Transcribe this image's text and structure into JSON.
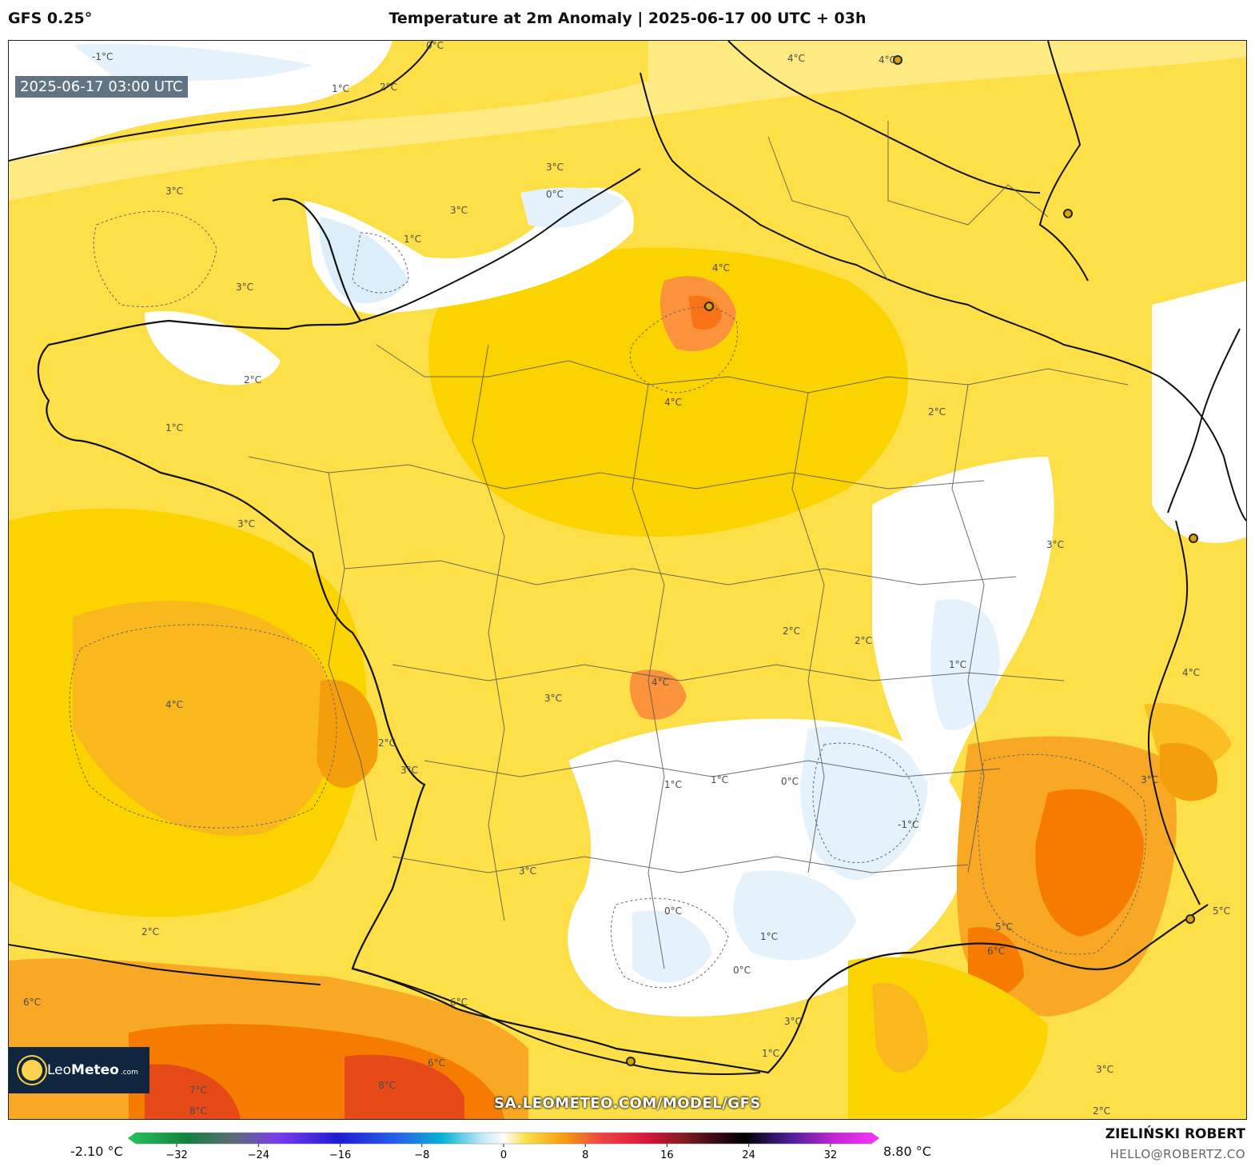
{
  "header": {
    "model": "GFS 0.25°",
    "title": "Temperature at 2m Anomaly | 2025-06-17 00 UTC + 03h"
  },
  "map": {
    "valid_time": "2025-06-17 03:00 UTC",
    "watermark": "SA.LEOMETEO.COM/MODEL/GFS",
    "logo": {
      "brand_light": "Leo",
      "brand_bold": "Meteo",
      "domain": ".com"
    },
    "contour_labels": [
      "-1°C",
      "0°C",
      "1°C",
      "2°C",
      "3°C",
      "4°C",
      "5°C",
      "6°C",
      "7°C",
      "8°C"
    ],
    "colors": {
      "cold": "#e6f2fb",
      "neutral": "#ffffff",
      "warm1": "#fff3b0",
      "warm2": "#fde047",
      "warm3": "#fbd400",
      "warm4": "#f9a825",
      "warm5": "#f57c00",
      "warm6": "#e64a19"
    }
  },
  "colorbar": {
    "min_label": "-2.10 °C",
    "max_label": "8.80 °C",
    "ticks": [
      "−32",
      "−24",
      "−16",
      "−8",
      "0",
      "8",
      "16",
      "24",
      "32"
    ],
    "tick_values": [
      -32,
      -24,
      -16,
      -8,
      0,
      8,
      16,
      24,
      32
    ],
    "range": [
      -36,
      36
    ]
  },
  "author": {
    "name": "ZIELIŃSKI ROBERT",
    "email": "HELLO@ROBERTZ.CO"
  }
}
